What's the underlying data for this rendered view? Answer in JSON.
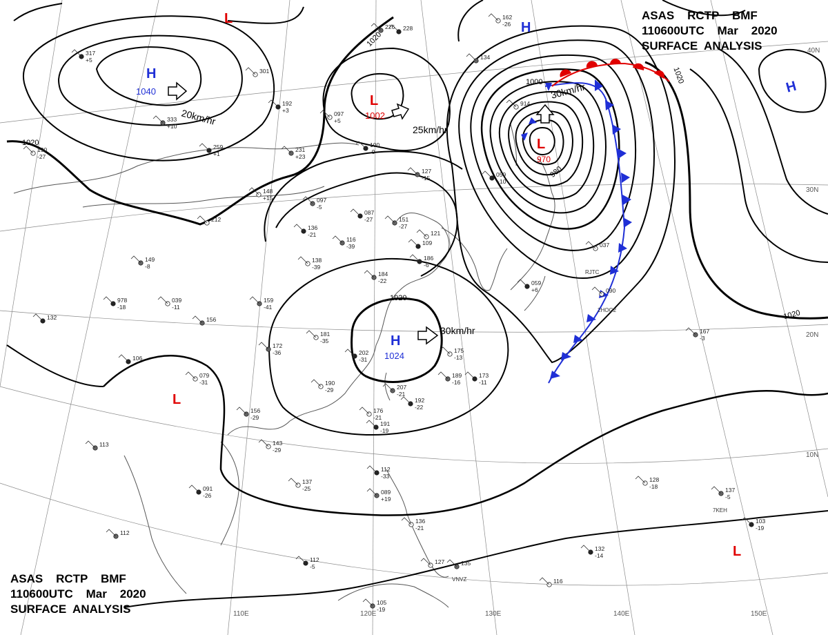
{
  "header": {
    "line1": "ASAS    RCTP    BMF",
    "line2": "110600UTC    Mar    2020",
    "line3": "SURFACE  ANALYSIS"
  },
  "isobar_labels": {
    "nw_1020": "1020",
    "north_1020": "1020",
    "central_1020": "1020",
    "ne_1020": "1020",
    "east_1020": "1020",
    "low_1000": "1000",
    "low_980": "980"
  },
  "pressure_centers": [
    {
      "id": "high-siberia",
      "type": "H",
      "value": "1040",
      "color": "#1f2fd6"
    },
    {
      "id": "low-mongolia",
      "type": "L",
      "value": "1002",
      "color": "#e00000"
    },
    {
      "id": "low-japan",
      "type": "L",
      "value": "970",
      "color": "#e00000"
    },
    {
      "id": "high-east-china",
      "type": "H",
      "value": "1024",
      "color": "#1f2fd6"
    },
    {
      "id": "high-northeast",
      "type": "H",
      "value": "",
      "color": "#1f2fd6"
    },
    {
      "id": "high-pacific",
      "type": "H",
      "value": "",
      "color": "#1f2fd6"
    },
    {
      "id": "low-north",
      "type": "L",
      "value": "",
      "color": "#e00000"
    },
    {
      "id": "low-vietnam",
      "type": "L",
      "value": "",
      "color": "#e00000"
    },
    {
      "id": "low-pacific",
      "type": "L",
      "value": "",
      "color": "#e00000"
    }
  ],
  "motion_labels": {
    "siberia": "20km/hr",
    "mongolia": "25km/hr",
    "japan": "30km/hr",
    "east_china": "30km/hr"
  },
  "lat_labels": {
    "n40": "40N",
    "n30": "30N",
    "n20": "20N",
    "n10": "10N"
  },
  "lon_labels": {
    "e110": "110E",
    "e120": "120E",
    "e130": "130E",
    "e140": "140E",
    "e150": "150E"
  },
  "stations": [
    {
      "p": "317",
      "t": "+5"
    },
    {
      "p": "301",
      "t": ""
    },
    {
      "p": "226",
      "t": ""
    },
    {
      "p": "228",
      "t": ""
    },
    {
      "p": "162",
      "t": "-26"
    },
    {
      "p": "134",
      "t": ""
    },
    {
      "p": "192",
      "t": "+3"
    },
    {
      "p": "097",
      "t": "+5"
    },
    {
      "p": "333",
      "t": "+10"
    },
    {
      "p": "100",
      "t": "-9"
    },
    {
      "p": "914",
      "t": ""
    },
    {
      "p": "231",
      "t": "+23"
    },
    {
      "p": "259",
      "t": "+1"
    },
    {
      "p": "190",
      "t": "-27"
    },
    {
      "p": "127",
      "t": "-15"
    },
    {
      "p": "059",
      "t": "+10"
    },
    {
      "p": "148",
      "t": "+15"
    },
    {
      "p": "097",
      "t": "-5"
    },
    {
      "p": "087",
      "t": "-27"
    },
    {
      "p": "212",
      "t": ""
    },
    {
      "p": "151",
      "t": "-27"
    },
    {
      "p": "136",
      "t": "-21"
    },
    {
      "p": "121",
      "t": ""
    },
    {
      "p": "116",
      "t": "-39"
    },
    {
      "p": "109",
      "t": ""
    },
    {
      "p": "138",
      "t": "-39"
    },
    {
      "p": "149",
      "t": "-8"
    },
    {
      "p": "186",
      "t": "-6"
    },
    {
      "p": "037",
      "t": ""
    },
    {
      "p": "184",
      "t": "-22"
    },
    {
      "p": "978",
      "t": "-18"
    },
    {
      "p": "039",
      "t": "-11"
    },
    {
      "p": "159",
      "t": "-41"
    },
    {
      "p": "059",
      "t": "+6"
    },
    {
      "p": "090",
      "t": ""
    },
    {
      "p": "156",
      "t": ""
    },
    {
      "p": "132",
      "t": ""
    },
    {
      "p": "181",
      "t": "-35"
    },
    {
      "p": "172",
      "t": "-36"
    },
    {
      "p": "202",
      "t": "-31"
    },
    {
      "p": "175",
      "t": "-13"
    },
    {
      "p": "167",
      "t": "-3"
    },
    {
      "p": "106",
      "t": ""
    },
    {
      "p": "079",
      "t": "-31"
    },
    {
      "p": "189",
      "t": "-16"
    },
    {
      "p": "173",
      "t": "-11"
    },
    {
      "p": "190",
      "t": "-29"
    },
    {
      "p": "207",
      "t": "-21"
    },
    {
      "p": "192",
      "t": "-22"
    },
    {
      "p": "176",
      "t": "-21"
    },
    {
      "p": "156",
      "t": "-29"
    },
    {
      "p": "191",
      "t": "-19"
    },
    {
      "p": "143",
      "t": "-29"
    },
    {
      "p": "113",
      "t": ""
    },
    {
      "p": "112",
      "t": "-33"
    },
    {
      "p": "137",
      "t": "-25"
    },
    {
      "p": "089",
      "t": "+19"
    },
    {
      "p": "091",
      "t": "-26"
    },
    {
      "p": "128",
      "t": "-18"
    },
    {
      "p": "137",
      "t": "-5"
    },
    {
      "p": "103",
      "t": "-19"
    },
    {
      "p": "136",
      "t": "-21"
    },
    {
      "p": "112",
      "t": ""
    },
    {
      "p": "112",
      "t": "-5"
    },
    {
      "p": "127",
      "t": ""
    },
    {
      "p": "135",
      "t": ""
    },
    {
      "p": "132",
      "t": "-14"
    },
    {
      "p": "116",
      "t": ""
    },
    {
      "p": "105",
      "t": "-19"
    }
  ],
  "station_codes": {
    "s1": "RJTC",
    "s2": "2HOG2",
    "s3": "7KEH",
    "s4": "VNVZ"
  }
}
